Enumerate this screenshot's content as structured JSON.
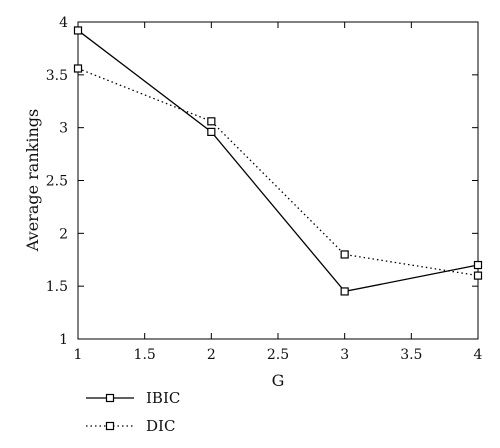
{
  "chart_data": {
    "type": "line",
    "xlabel": "G",
    "ylabel": "Average rankings",
    "xlim": [
      1,
      4
    ],
    "ylim": [
      1,
      4
    ],
    "xticks": [
      "1",
      "1.5",
      "2",
      "2.5",
      "3",
      "3.5",
      "4"
    ],
    "yticks": [
      "1",
      "1.5",
      "2",
      "2.5",
      "3",
      "3.5",
      "4"
    ],
    "grid": false,
    "legend_position": "bottom-left",
    "series": [
      {
        "name": "IBIC",
        "line_style": "solid",
        "marker": "square",
        "color": "#000000",
        "x": [
          1,
          2,
          3,
          4
        ],
        "y": [
          3.92,
          2.96,
          1.45,
          1.7
        ]
      },
      {
        "name": "DIC",
        "line_style": "dotted",
        "marker": "square",
        "color": "#000000",
        "x": [
          1,
          2,
          3,
          4
        ],
        "y": [
          3.56,
          3.06,
          1.8,
          1.6
        ]
      }
    ]
  }
}
